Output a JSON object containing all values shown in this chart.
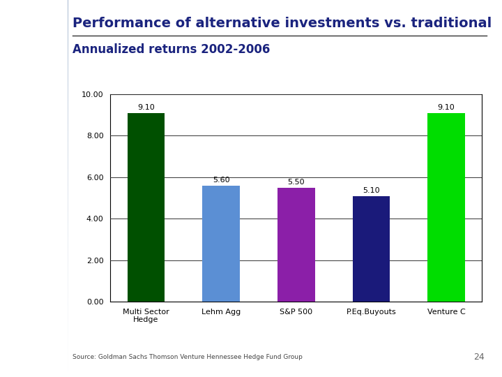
{
  "categories": [
    "Multi Sector\nHedge",
    "Lehm Agg",
    "S&P 500",
    "P.Eq.Buyouts",
    "Venture C"
  ],
  "values": [
    9.1,
    5.6,
    5.5,
    5.1,
    9.1
  ],
  "bar_colors": [
    "#005000",
    "#5B8FD4",
    "#8B1FA8",
    "#1A1A7A",
    "#00DD00"
  ],
  "value_labels": [
    "9.10",
    "5.60",
    "5.50",
    "5.10",
    "9.10"
  ],
  "title": "Performance of alternative investments vs. traditional",
  "subtitle": "Annualized returns 2002-2006",
  "source": "Source: Goldman Sachs Thomson Venture Hennessee Hedge Fund Group",
  "page_number": "24",
  "ylim": [
    0,
    10
  ],
  "yticks": [
    0.0,
    2.0,
    4.0,
    6.0,
    8.0,
    10.0
  ],
  "ytick_labels": [
    "0.00",
    "2.00",
    "4.00",
    "6.00",
    "8.00",
    "10.00"
  ],
  "bg_color": "#FFFFFF",
  "chart_bg": "#FFFFFF",
  "title_color": "#1A237E",
  "subtitle_color": "#1A237E",
  "grid_color": "#333333",
  "axis_label_fontsize": 8,
  "title_fontsize": 14,
  "subtitle_fontsize": 12,
  "bar_label_fontsize": 8,
  "left_panel_color_top": "#B8C8E0",
  "left_panel_color_bottom": "#FFFFFF",
  "logo_bg": "#1A3060"
}
